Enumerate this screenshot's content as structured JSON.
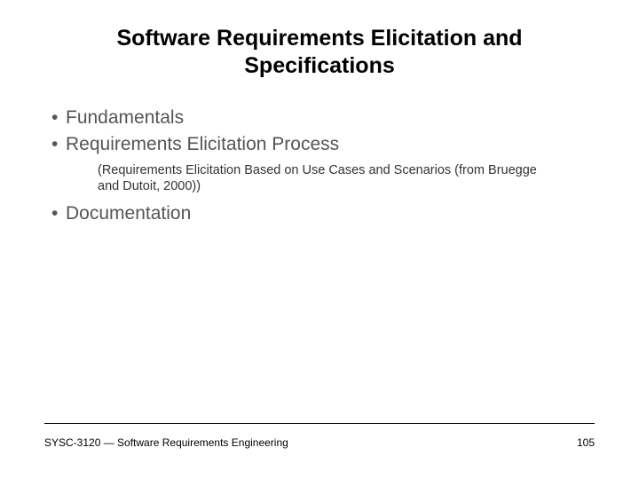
{
  "title": "Software Requirements Elicitation and Specifications",
  "bullets": {
    "item0": "Fundamentals",
    "item1": "Requirements Elicitation Process",
    "item2": "Documentation"
  },
  "subnote": "(Requirements Elicitation Based on Use Cases and Scenarios (from Bruegge and Dutoit, 2000))",
  "footer": {
    "course": "SYSC-3120 — Software Requirements Engineering",
    "page": "105"
  },
  "colors": {
    "background": "#ffffff",
    "title_text": "#000000",
    "bullet_text": "#555555",
    "subnote_text": "#333333",
    "footer_text": "#000000",
    "rule": "#000000"
  },
  "typography": {
    "title_fontsize": 25,
    "title_weight": "bold",
    "bullet_fontsize": 21,
    "subnote_fontsize": 14.5,
    "footer_fontsize": 12,
    "font_family": "Arial"
  }
}
